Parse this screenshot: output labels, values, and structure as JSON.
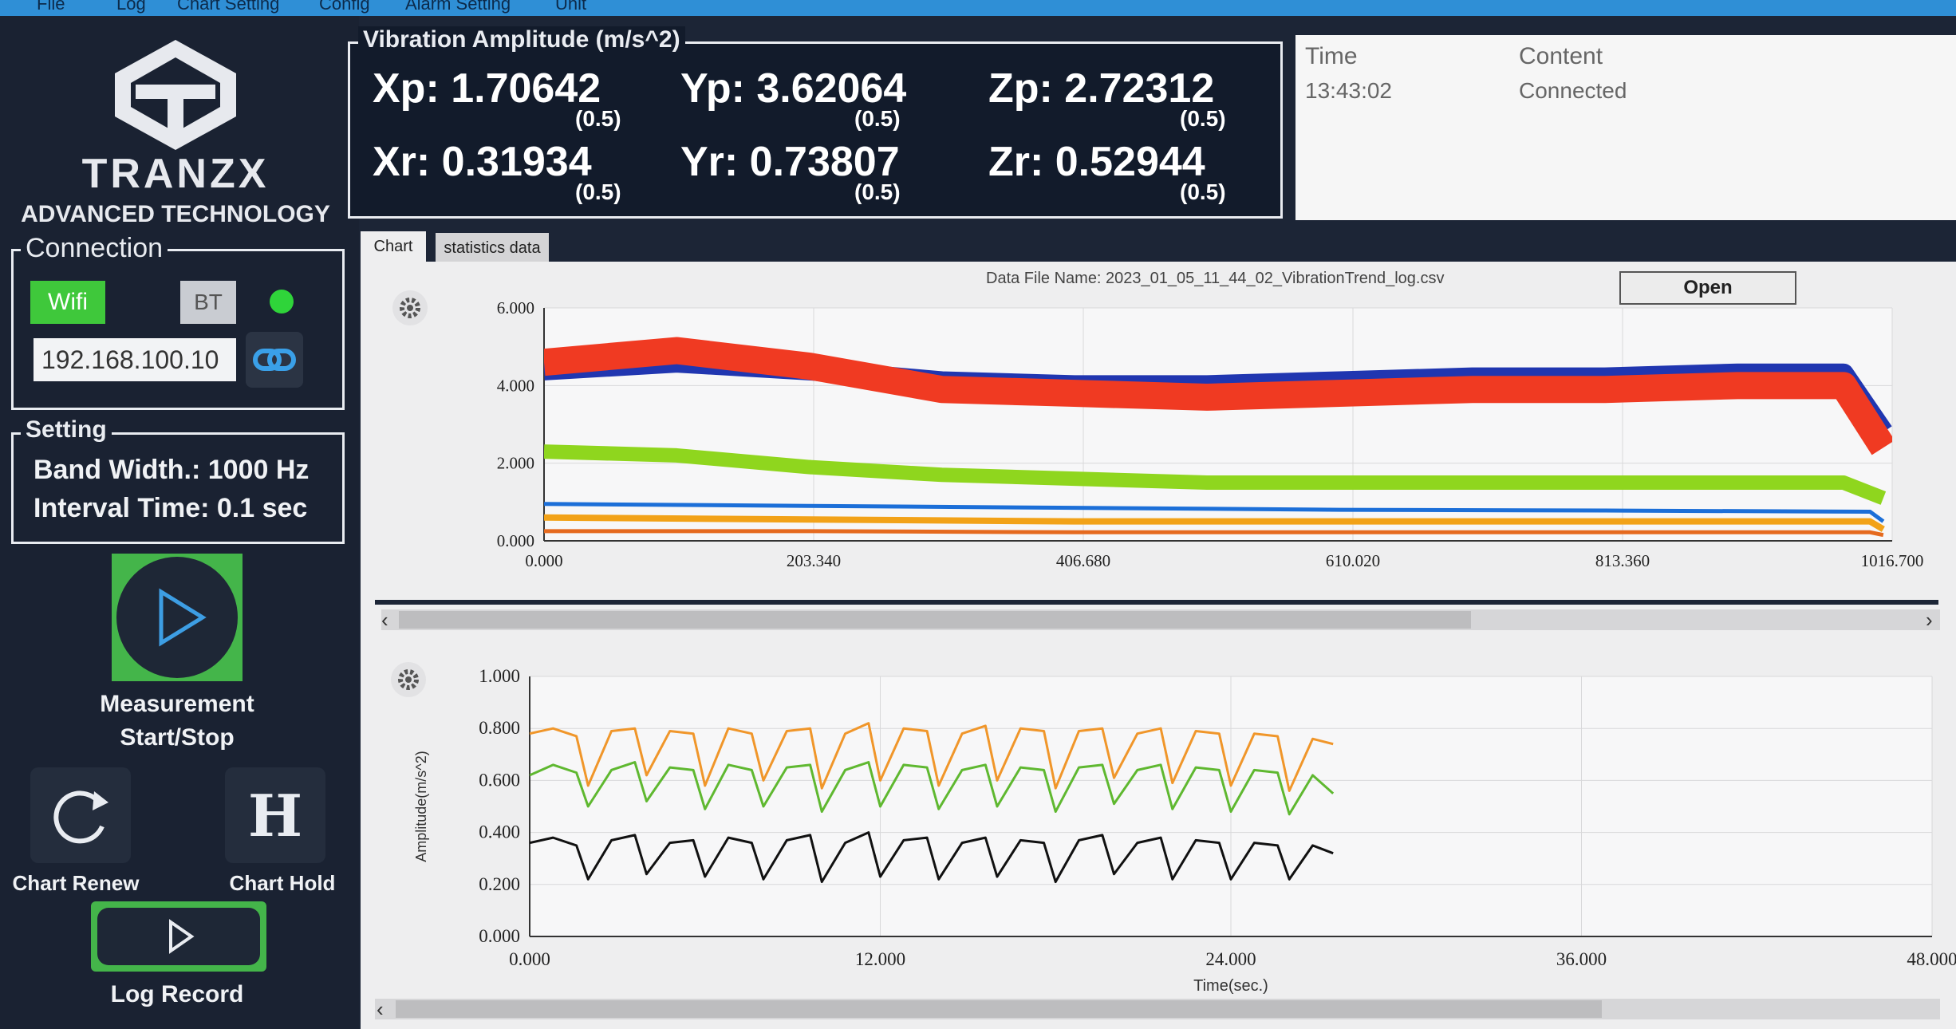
{
  "menu": [
    "File",
    "Log",
    "Chart Setting",
    "Config",
    "Alarm Setting",
    "Unit"
  ],
  "logo": {
    "brand": "TRANZX",
    "tagline": "ADVANCED TECHNOLOGY"
  },
  "connection": {
    "legend": "Connection",
    "wifi_label": "Wifi",
    "bt_label": "BT",
    "ip": "192.168.100.10",
    "status_color": "#2fd43a"
  },
  "setting": {
    "legend": "Setting",
    "band_width": "Band Width.: 1000 Hz",
    "interval_time": "Interval Time: 0.1 sec"
  },
  "controls": {
    "measure_line1": "Measurement",
    "measure_line2": "Start/Stop",
    "renew": "Chart Renew",
    "hold": "Chart Hold",
    "hold_letter": "H",
    "log": "Log Record"
  },
  "vibration": {
    "legend": "Vibration Amplitude (m/s^2)",
    "xp": "Xp: 1.70642",
    "xp_thr": "(0.5)",
    "yp": "Yp: 3.62064",
    "yp_thr": "(0.5)",
    "zp": "Zp: 2.72312",
    "zp_thr": "(0.5)",
    "xr": "Xr: 0.31934",
    "xr_thr": "(0.5)",
    "yr": "Yr: 0.73807",
    "yr_thr": "(0.5)",
    "zr": "Zr: 0.52944",
    "zr_thr": "(0.5)"
  },
  "log": {
    "col_time": "Time",
    "col_content": "Content",
    "rows": [
      {
        "time": "13:43:02",
        "content": "Connected"
      }
    ]
  },
  "tabs": [
    "Chart",
    "statistics data"
  ],
  "file": {
    "name": "Data File Name: 2023_01_05_11_44_02_VibrationTrend_log.csv",
    "open_label": "Open"
  },
  "chart_data": [
    {
      "type": "line",
      "title": "",
      "xlabel": "",
      "ylabel": "",
      "xlim": [
        0,
        1016.7
      ],
      "ylim": [
        0,
        6
      ],
      "x_ticks": [
        "0.000",
        "203.340",
        "406.680",
        "610.020",
        "813.360",
        "1016.700"
      ],
      "y_ticks": [
        "0.000",
        "2.000",
        "4.000",
        "6.000"
      ],
      "grid": true,
      "series": [
        {
          "color": "#2036b0",
          "x": [
            0,
            100,
            200,
            300,
            400,
            500,
            600,
            700,
            800,
            900,
            980,
            1010
          ],
          "y": [
            4.4,
            4.6,
            4.4,
            4.1,
            4.0,
            4.0,
            4.1,
            4.2,
            4.2,
            4.3,
            4.3,
            2.8
          ]
        },
        {
          "color": "#f03a22",
          "x": [
            0,
            100,
            200,
            300,
            400,
            500,
            600,
            700,
            800,
            900,
            980,
            1010
          ],
          "y": [
            4.6,
            4.9,
            4.5,
            3.9,
            3.8,
            3.7,
            3.8,
            3.9,
            3.9,
            4.0,
            4.0,
            2.4
          ]
        },
        {
          "color": "#8fd61e",
          "x": [
            0,
            100,
            200,
            300,
            400,
            500,
            600,
            700,
            800,
            900,
            980,
            1010
          ],
          "y": [
            2.3,
            2.2,
            1.9,
            1.7,
            1.6,
            1.5,
            1.5,
            1.5,
            1.5,
            1.5,
            1.5,
            1.1
          ]
        },
        {
          "color": "#1c6fd8",
          "x": [
            0,
            200,
            400,
            600,
            800,
            1000,
            1010
          ],
          "y": [
            0.95,
            0.9,
            0.85,
            0.8,
            0.78,
            0.75,
            0.5
          ]
        },
        {
          "color": "#f2a218",
          "x": [
            0,
            200,
            400,
            600,
            800,
            1000,
            1010
          ],
          "y": [
            0.6,
            0.55,
            0.5,
            0.5,
            0.5,
            0.5,
            0.3
          ]
        },
        {
          "color": "#e56a1f",
          "x": [
            0,
            200,
            400,
            600,
            800,
            1000,
            1010
          ],
          "y": [
            0.25,
            0.25,
            0.22,
            0.22,
            0.22,
            0.22,
            0.15
          ]
        }
      ]
    },
    {
      "type": "line",
      "title": "",
      "xlabel": "Time(sec.)",
      "ylabel": "Amplitude(m/s^2)",
      "xlim": [
        0,
        48
      ],
      "ylim": [
        0,
        1
      ],
      "x_ticks": [
        "0.000",
        "12.000",
        "24.000",
        "36.000",
        "48.000"
      ],
      "y_ticks": [
        "0.000",
        "0.200",
        "0.400",
        "0.600",
        "0.800",
        "1.000"
      ],
      "grid": true,
      "series": [
        {
          "color": "#f0962a",
          "x": [
            0,
            0.8,
            1.6,
            2.0,
            2.8,
            3.6,
            4.0,
            4.8,
            5.6,
            6.0,
            6.8,
            7.6,
            8.0,
            8.8,
            9.6,
            10.0,
            10.8,
            11.6,
            12.0,
            12.8,
            13.6,
            14.0,
            14.8,
            15.6,
            16.0,
            16.8,
            17.6,
            18.0,
            18.8,
            19.6,
            20.0,
            20.8,
            21.6,
            22.0,
            22.8,
            23.6,
            24.0,
            24.8,
            25.6,
            26.0,
            26.8,
            27.5
          ],
          "y": [
            0.78,
            0.8,
            0.77,
            0.58,
            0.79,
            0.8,
            0.62,
            0.79,
            0.78,
            0.58,
            0.8,
            0.78,
            0.6,
            0.79,
            0.8,
            0.57,
            0.78,
            0.82,
            0.6,
            0.8,
            0.79,
            0.58,
            0.78,
            0.81,
            0.6,
            0.8,
            0.79,
            0.57,
            0.79,
            0.8,
            0.61,
            0.78,
            0.8,
            0.59,
            0.79,
            0.78,
            0.58,
            0.78,
            0.77,
            0.56,
            0.76,
            0.74
          ]
        },
        {
          "color": "#5fb830",
          "x": [
            0,
            0.8,
            1.6,
            2.0,
            2.8,
            3.6,
            4.0,
            4.8,
            5.6,
            6.0,
            6.8,
            7.6,
            8.0,
            8.8,
            9.6,
            10.0,
            10.8,
            11.6,
            12.0,
            12.8,
            13.6,
            14.0,
            14.8,
            15.6,
            16.0,
            16.8,
            17.6,
            18.0,
            18.8,
            19.6,
            20.0,
            20.8,
            21.6,
            22.0,
            22.8,
            23.6,
            24.0,
            24.8,
            25.6,
            26.0,
            26.8,
            27.5
          ],
          "y": [
            0.62,
            0.66,
            0.63,
            0.5,
            0.64,
            0.67,
            0.52,
            0.65,
            0.64,
            0.49,
            0.66,
            0.64,
            0.5,
            0.65,
            0.66,
            0.48,
            0.64,
            0.67,
            0.5,
            0.66,
            0.65,
            0.49,
            0.64,
            0.66,
            0.5,
            0.65,
            0.64,
            0.48,
            0.65,
            0.66,
            0.51,
            0.64,
            0.66,
            0.49,
            0.65,
            0.64,
            0.48,
            0.64,
            0.63,
            0.47,
            0.62,
            0.55
          ]
        },
        {
          "color": "#111111",
          "x": [
            0,
            0.8,
            1.6,
            2.0,
            2.8,
            3.6,
            4.0,
            4.8,
            5.6,
            6.0,
            6.8,
            7.6,
            8.0,
            8.8,
            9.6,
            10.0,
            10.8,
            11.6,
            12.0,
            12.8,
            13.6,
            14.0,
            14.8,
            15.6,
            16.0,
            16.8,
            17.6,
            18.0,
            18.8,
            19.6,
            20.0,
            20.8,
            21.6,
            22.0,
            22.8,
            23.6,
            24.0,
            24.8,
            25.6,
            26.0,
            26.8,
            27.5
          ],
          "y": [
            0.36,
            0.38,
            0.35,
            0.22,
            0.37,
            0.39,
            0.24,
            0.36,
            0.37,
            0.23,
            0.38,
            0.36,
            0.22,
            0.37,
            0.39,
            0.21,
            0.36,
            0.4,
            0.23,
            0.37,
            0.38,
            0.22,
            0.36,
            0.38,
            0.23,
            0.37,
            0.36,
            0.21,
            0.37,
            0.39,
            0.24,
            0.36,
            0.38,
            0.22,
            0.37,
            0.36,
            0.22,
            0.36,
            0.35,
            0.22,
            0.35,
            0.32
          ]
        }
      ]
    }
  ]
}
